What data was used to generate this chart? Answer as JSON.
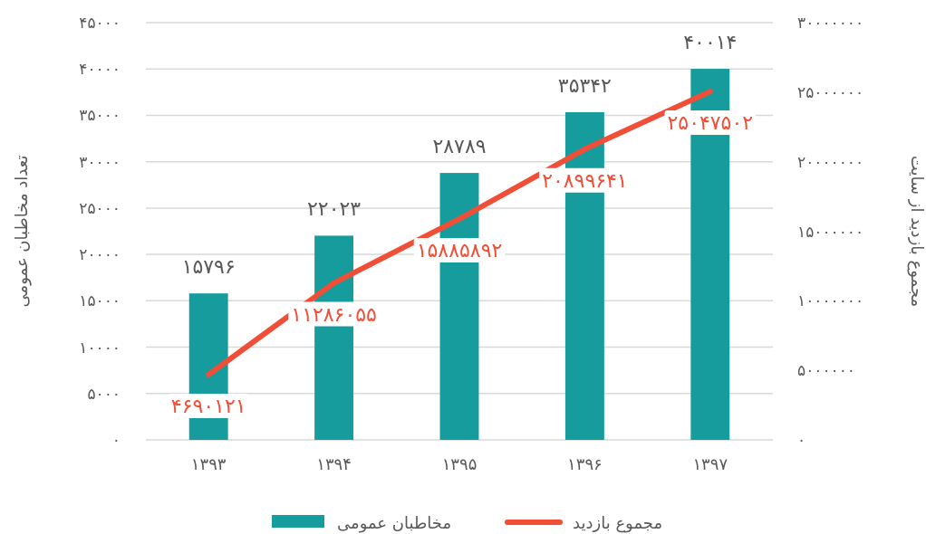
{
  "chart_data": {
    "type": "bar",
    "categories": [
      "۱۳۹۳",
      "۱۳۹۴",
      "۱۳۹۵",
      "۱۳۹۶",
      "۱۳۹۷"
    ],
    "ylabel": "تعداد مخاطبان عمومی",
    "y2label": "مجموع بازدید از سایت",
    "series": [
      {
        "name": "مخاطبان عمومی",
        "color": "#179c9e",
        "values": [
          15796,
          22023,
          28789,
          35342,
          40014
        ],
        "value_labels": [
          "۱۵۷۹۶",
          "۲۲۰۲۳",
          "۲۸۷۸۹",
          "۳۵۳۴۲",
          "۴۰۰۱۴"
        ]
      },
      {
        "name": "مجموع بازدید",
        "type": "line",
        "axis": "y2",
        "color": "#f04e37",
        "values": [
          4690121,
          11286055,
          15885892,
          20899641,
          25047502
        ],
        "value_labels": [
          "۴۶۹۰۱۲۱",
          "۱۱۲۸۶۰۵۵",
          "۱۵۸۸۵۸۹۲",
          "۲۰۸۹۹۶۴۱",
          "۲۵۰۴۷۵۰۲"
        ]
      }
    ],
    "ylim": [
      0,
      45000
    ],
    "yticks": [
      {
        "value": 0,
        "label": "۰"
      },
      {
        "value": 5000,
        "label": "۵۰۰۰"
      },
      {
        "value": 10000,
        "label": "۱۰۰۰۰"
      },
      {
        "value": 15000,
        "label": "۱۵۰۰۰"
      },
      {
        "value": 20000,
        "label": "۲۰۰۰۰"
      },
      {
        "value": 25000,
        "label": "۲۵۰۰۰"
      },
      {
        "value": 30000,
        "label": "۳۰۰۰۰"
      },
      {
        "value": 35000,
        "label": "۳۵۰۰۰"
      },
      {
        "value": 40000,
        "label": "۴۰۰۰۰"
      },
      {
        "value": 45000,
        "label": "۴۵۰۰۰"
      }
    ],
    "y2lim": [
      0,
      30000000
    ],
    "y2ticks": [
      {
        "value": 0,
        "label": "۰"
      },
      {
        "value": 5000000,
        "label": "۵۰۰۰۰۰۰"
      },
      {
        "value": 10000000,
        "label": "۱۰۰۰۰۰۰۰"
      },
      {
        "value": 15000000,
        "label": "۱۵۰۰۰۰۰۰"
      },
      {
        "value": 20000000,
        "label": "۲۰۰۰۰۰۰۰"
      },
      {
        "value": 25000000,
        "label": "۲۵۰۰۰۰۰۰"
      },
      {
        "value": 30000000,
        "label": "۳۰۰۰۰۰۰۰"
      }
    ],
    "grid": "y",
    "legend": "bottom",
    "marker": "none",
    "line_style": "solid"
  }
}
